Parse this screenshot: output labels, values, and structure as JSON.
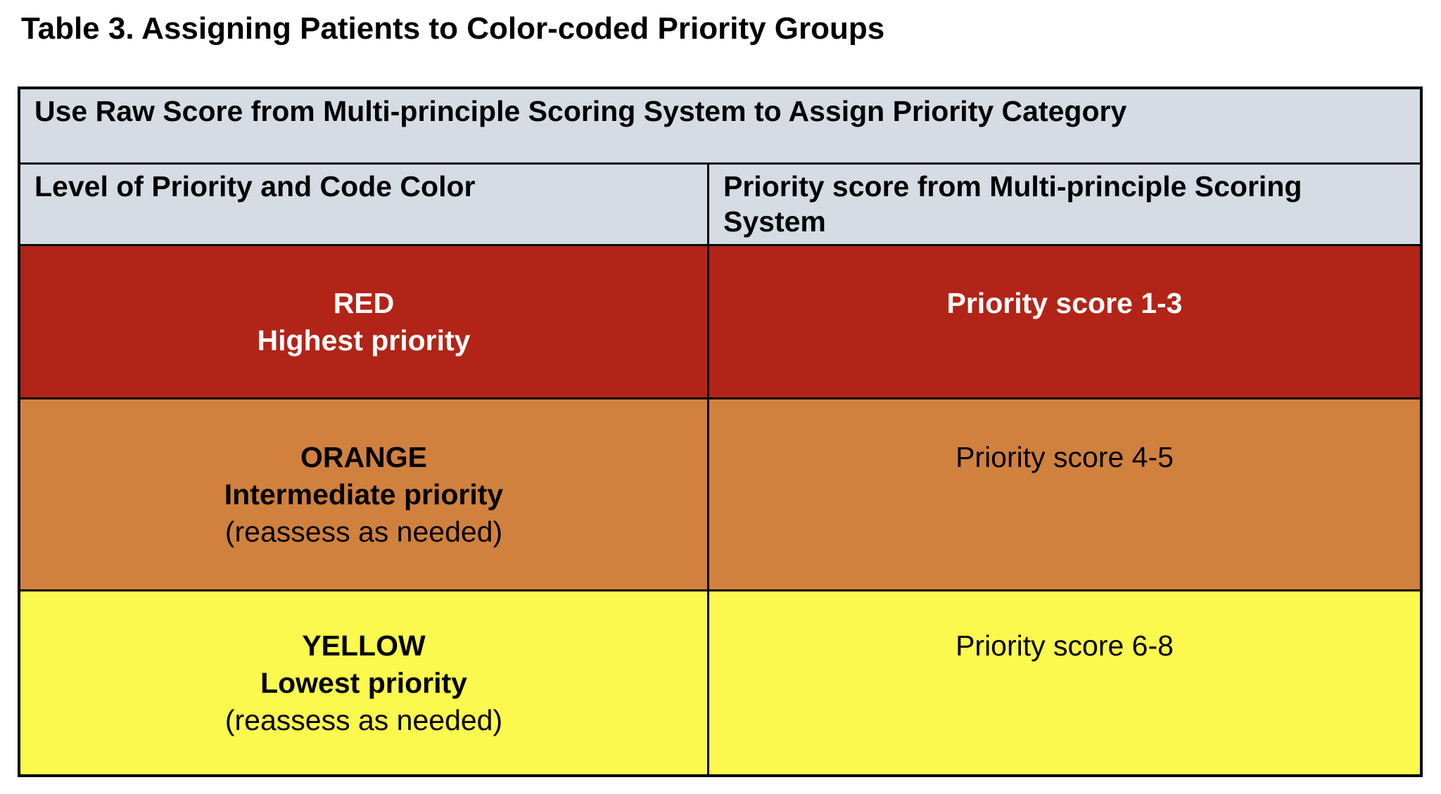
{
  "title": "Table 3. Assigning Patients to Color-coded Priority Groups",
  "table": {
    "merged_header": "Use Raw Score from Multi-principle Scoring System to Assign Priority Category",
    "column_headers": {
      "left": "Level of Priority and Code Color",
      "right_lines": [
        "Priority score from Multi-principle Scoring",
        "System"
      ]
    },
    "rows": [
      {
        "code_color": "RED",
        "level_label": "Highest priority",
        "note": "",
        "score_label": "Priority score 1-3",
        "bg_color": "#b22417",
        "text_color": "#ffffff"
      },
      {
        "code_color": "ORANGE",
        "level_label": "Intermediate priority",
        "note": "(reassess as needed)",
        "score_label": "Priority score 4-5",
        "bg_color": "#d0813e",
        "text_color": "#000000"
      },
      {
        "code_color": "YELLOW",
        "level_label": "Lowest priority",
        "note": "(reassess as needed)",
        "score_label": "Priority score 6-8",
        "bg_color": "#fbf84e",
        "text_color": "#000000"
      }
    ]
  },
  "colors": {
    "header_bg": "#d6dce4",
    "border": "#000000",
    "page_bg": "#ffffff",
    "red_row_bg": "#b22417",
    "orange_row_bg": "#d0813e",
    "yellow_row_bg": "#fbf84e"
  },
  "chart_data": {
    "type": "table",
    "title": "Table 3. Assigning Patients to Color-coded Priority Groups",
    "merged_header": "Use Raw Score from Multi-principle Scoring System to Assign Priority Category",
    "columns": [
      "Level of Priority and Code Color",
      "Priority score from Multi-principle Scoring System"
    ],
    "rows": [
      [
        "RED — Highest priority",
        "Priority score 1-3"
      ],
      [
        "ORANGE — Intermediate priority (reassess as needed)",
        "Priority score 4-5"
      ],
      [
        "YELLOW — Lowest priority (reassess as needed)",
        "Priority score 6-8"
      ]
    ]
  }
}
